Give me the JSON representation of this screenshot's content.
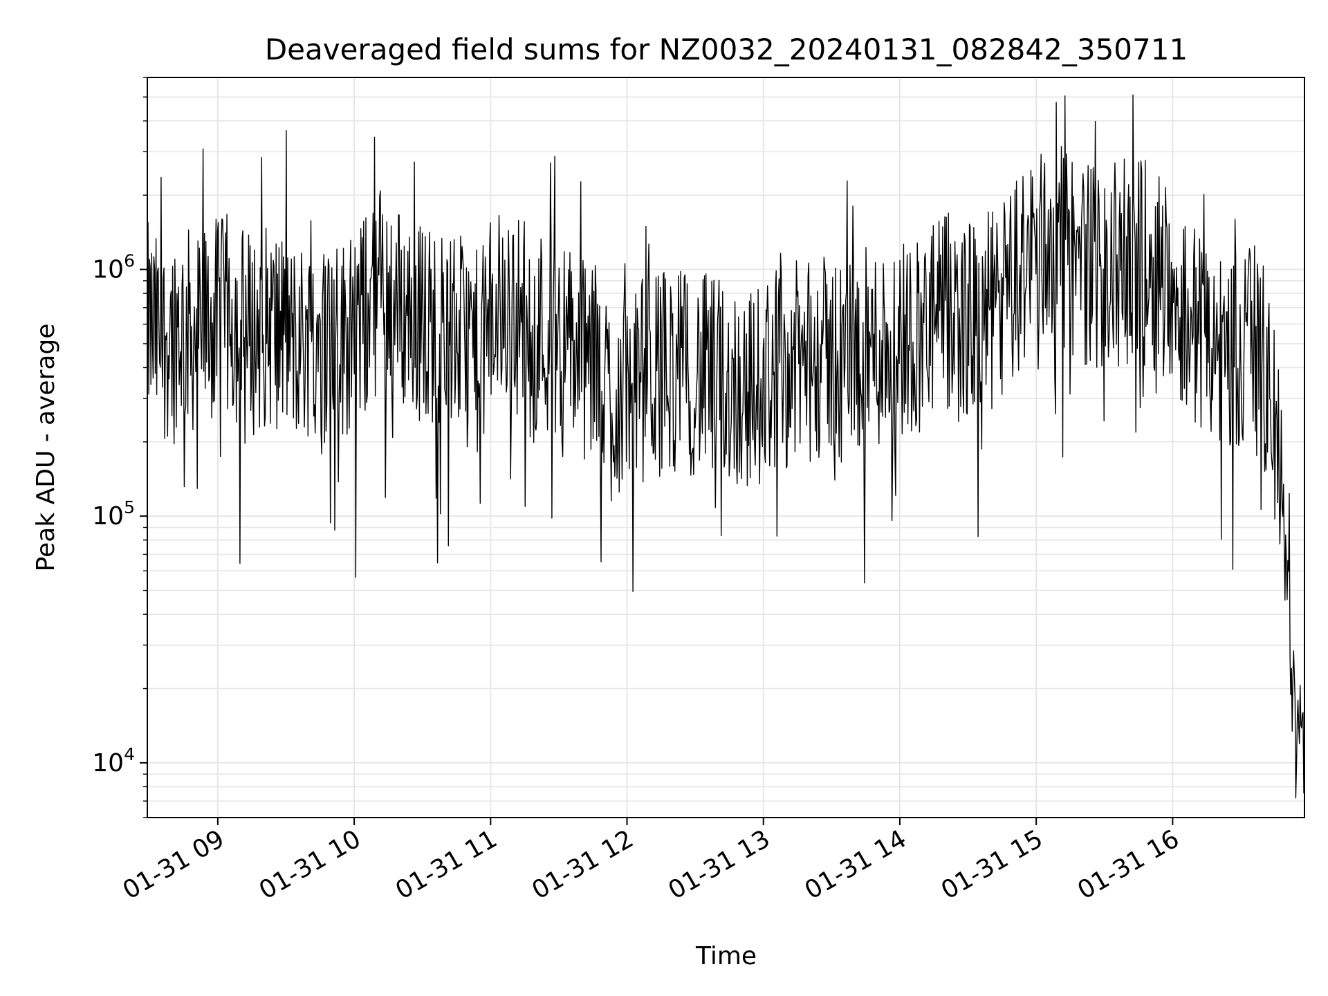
{
  "chart_data": {
    "type": "line",
    "title": "Deaveraged field sums for NZ0032_20240131_082842_350711",
    "xlabel": "Time",
    "ylabel": "Peak ADU - average",
    "yscale": "log",
    "ylim": [
      6000,
      6000000
    ],
    "xlim": [
      "2024-01-31 08:29",
      "2024-01-31 16:58"
    ],
    "grid": true,
    "line_color": "#000000",
    "x_ticks": [
      {
        "at": "2024-01-31 09:00",
        "label": "01-31 09"
      },
      {
        "at": "2024-01-31 10:00",
        "label": "01-31 10"
      },
      {
        "at": "2024-01-31 11:00",
        "label": "01-31 11"
      },
      {
        "at": "2024-01-31 12:00",
        "label": "01-31 12"
      },
      {
        "at": "2024-01-31 13:00",
        "label": "01-31 13"
      },
      {
        "at": "2024-01-31 14:00",
        "label": "01-31 14"
      },
      {
        "at": "2024-01-31 15:00",
        "label": "01-31 15"
      },
      {
        "at": "2024-01-31 16:00",
        "label": "01-31 16"
      }
    ],
    "y_ticks": [
      {
        "value": 10000,
        "base": "10",
        "exp": "4"
      },
      {
        "value": 100000,
        "base": "10",
        "exp": "5"
      },
      {
        "value": 1000000,
        "base": "10",
        "exp": "6"
      }
    ],
    "series": [
      {
        "x": [
          "2024-01-31 08:29",
          "2024-01-31 08:35",
          "2024-01-31 08:42",
          "2024-01-31 08:50",
          "2024-01-31 08:56",
          "2024-01-31 09:05",
          "2024-01-31 09:15",
          "2024-01-31 09:24",
          "2024-01-31 09:34",
          "2024-01-31 09:44",
          "2024-01-31 09:53",
          "2024-01-31 10:05",
          "2024-01-31 10:12",
          "2024-01-31 10:20",
          "2024-01-31 10:33",
          "2024-01-31 10:45",
          "2024-01-31 10:55",
          "2024-01-31 11:04",
          "2024-01-31 11:15",
          "2024-01-31 11:25",
          "2024-01-31 11:35",
          "2024-01-31 11:44",
          "2024-01-31 11:55",
          "2024-01-31 12:05",
          "2024-01-31 12:15",
          "2024-01-31 12:30",
          "2024-01-31 12:42",
          "2024-01-31 12:55",
          "2024-01-31 13:05",
          "2024-01-31 13:20",
          "2024-01-31 13:35",
          "2024-01-31 13:50",
          "2024-01-31 14:05",
          "2024-01-31 14:20",
          "2024-01-31 14:35",
          "2024-01-31 14:48",
          "2024-01-31 14:58",
          "2024-01-31 15:08",
          "2024-01-31 15:18",
          "2024-01-31 15:30",
          "2024-01-31 15:43",
          "2024-01-31 15:55",
          "2024-01-31 16:05",
          "2024-01-31 16:15",
          "2024-01-31 16:25",
          "2024-01-31 16:35",
          "2024-01-31 16:40",
          "2024-01-31 16:44",
          "2024-01-31 16:47",
          "2024-01-31 16:50",
          "2024-01-31 16:52",
          "2024-01-31 16:54",
          "2024-01-31 16:56",
          "2024-01-31 16:58"
        ],
        "y": [
          600000,
          500000,
          600000,
          550000,
          600000,
          650000,
          550000,
          600000,
          500000,
          550000,
          500000,
          650000,
          900000,
          700000,
          600000,
          550000,
          450000,
          700000,
          650000,
          550000,
          500000,
          400000,
          300000,
          350000,
          400000,
          380000,
          350000,
          320000,
          400000,
          420000,
          450000,
          480000,
          550000,
          650000,
          600000,
          800000,
          1200000,
          1300000,
          1100000,
          1000000,
          1100000,
          1000000,
          700000,
          500000,
          450000,
          500000,
          400000,
          250000,
          150000,
          60000,
          25000,
          15000,
          13000,
          12000
        ]
      }
    ]
  }
}
